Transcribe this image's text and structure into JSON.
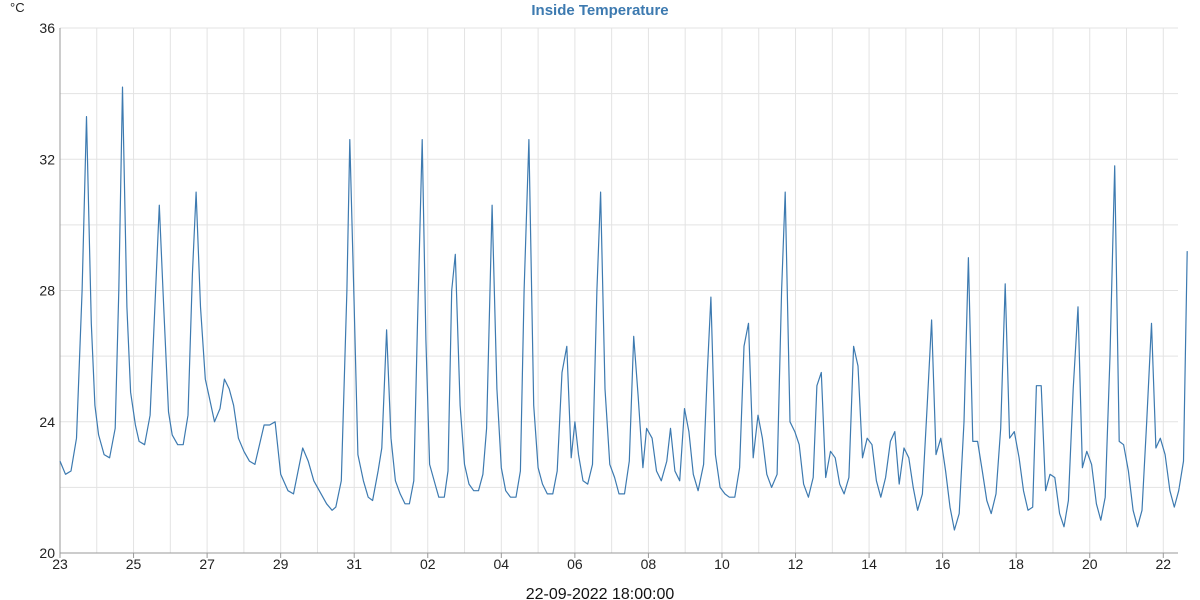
{
  "chart_data": {
    "type": "line",
    "title": "Inside Temperature",
    "ylabel": "°C",
    "xlabel": "22-09-2022 18:00:00",
    "ylim": [
      20,
      36
    ],
    "yticks": [
      20,
      24,
      28,
      32,
      36
    ],
    "xlim": [
      0,
      30.4
    ],
    "xticks": [
      {
        "x": 0,
        "label": "23"
      },
      {
        "x": 2,
        "label": "25"
      },
      {
        "x": 4,
        "label": "27"
      },
      {
        "x": 6,
        "label": "29"
      },
      {
        "x": 8,
        "label": "31"
      },
      {
        "x": 10,
        "label": "02"
      },
      {
        "x": 12,
        "label": "04"
      },
      {
        "x": 14,
        "label": "06"
      },
      {
        "x": 16,
        "label": "08"
      },
      {
        "x": 18,
        "label": "10"
      },
      {
        "x": 20,
        "label": "12"
      },
      {
        "x": 22,
        "label": "14"
      },
      {
        "x": 24,
        "label": "16"
      },
      {
        "x": 26,
        "label": "18"
      },
      {
        "x": 28,
        "label": "20"
      },
      {
        "x": 30,
        "label": "22"
      }
    ],
    "grid": true,
    "colors": {
      "line": "#3d7ab0",
      "title": "#3d7ab0",
      "grid": "#e3e3e3"
    },
    "series": [
      {
        "points": [
          [
            0.0,
            22.8
          ],
          [
            0.15,
            22.4
          ],
          [
            0.3,
            22.5
          ],
          [
            0.45,
            23.5
          ],
          [
            0.6,
            28.0
          ],
          [
            0.72,
            33.3
          ],
          [
            0.85,
            27.0
          ],
          [
            0.95,
            24.5
          ],
          [
            1.05,
            23.6
          ],
          [
            1.2,
            23.0
          ],
          [
            1.35,
            22.9
          ],
          [
            1.5,
            23.8
          ],
          [
            1.6,
            28.0
          ],
          [
            1.7,
            34.2
          ],
          [
            1.82,
            27.5
          ],
          [
            1.92,
            24.9
          ],
          [
            2.05,
            23.9
          ],
          [
            2.15,
            23.4
          ],
          [
            2.3,
            23.3
          ],
          [
            2.45,
            24.2
          ],
          [
            2.6,
            28.0
          ],
          [
            2.7,
            30.6
          ],
          [
            2.82,
            27.5
          ],
          [
            2.95,
            24.3
          ],
          [
            3.05,
            23.6
          ],
          [
            3.2,
            23.3
          ],
          [
            3.35,
            23.3
          ],
          [
            3.48,
            24.2
          ],
          [
            3.6,
            28.5
          ],
          [
            3.7,
            31.0
          ],
          [
            3.82,
            27.5
          ],
          [
            3.95,
            25.3
          ],
          [
            4.05,
            24.8
          ],
          [
            4.2,
            24.0
          ],
          [
            4.35,
            24.4
          ],
          [
            4.47,
            25.3
          ],
          [
            4.6,
            25.0
          ],
          [
            4.72,
            24.5
          ],
          [
            4.85,
            23.5
          ],
          [
            5.0,
            23.1
          ],
          [
            5.15,
            22.8
          ],
          [
            5.3,
            22.7
          ],
          [
            5.55,
            23.9
          ],
          [
            5.7,
            23.9
          ],
          [
            5.85,
            24.0
          ],
          [
            6.0,
            22.4
          ],
          [
            6.2,
            21.9
          ],
          [
            6.35,
            21.8
          ],
          [
            6.6,
            23.2
          ],
          [
            6.75,
            22.8
          ],
          [
            6.9,
            22.2
          ],
          [
            7.1,
            21.8
          ],
          [
            7.25,
            21.5
          ],
          [
            7.4,
            21.3
          ],
          [
            7.5,
            21.4
          ],
          [
            7.65,
            22.2
          ],
          [
            7.8,
            28.0
          ],
          [
            7.88,
            32.6
          ],
          [
            8.0,
            27.5
          ],
          [
            8.1,
            23.0
          ],
          [
            8.25,
            22.2
          ],
          [
            8.38,
            21.7
          ],
          [
            8.5,
            21.6
          ],
          [
            8.65,
            22.5
          ],
          [
            8.75,
            23.2
          ],
          [
            8.88,
            26.8
          ],
          [
            9.0,
            23.5
          ],
          [
            9.12,
            22.2
          ],
          [
            9.25,
            21.8
          ],
          [
            9.38,
            21.5
          ],
          [
            9.5,
            21.5
          ],
          [
            9.62,
            22.2
          ],
          [
            9.72,
            27.0
          ],
          [
            9.85,
            32.6
          ],
          [
            9.95,
            26.5
          ],
          [
            10.05,
            22.7
          ],
          [
            10.2,
            22.1
          ],
          [
            10.3,
            21.7
          ],
          [
            10.45,
            21.7
          ],
          [
            10.55,
            22.5
          ],
          [
            10.65,
            28.0
          ],
          [
            10.75,
            29.1
          ],
          [
            10.88,
            24.5
          ],
          [
            11.0,
            22.7
          ],
          [
            11.12,
            22.1
          ],
          [
            11.25,
            21.9
          ],
          [
            11.38,
            21.9
          ],
          [
            11.5,
            22.4
          ],
          [
            11.6,
            23.8
          ],
          [
            11.75,
            30.6
          ],
          [
            11.88,
            25.0
          ],
          [
            12.0,
            22.6
          ],
          [
            12.12,
            21.9
          ],
          [
            12.25,
            21.7
          ],
          [
            12.4,
            21.7
          ],
          [
            12.52,
            22.5
          ],
          [
            12.62,
            28.0
          ],
          [
            12.75,
            32.6
          ],
          [
            12.88,
            24.5
          ],
          [
            13.0,
            22.6
          ],
          [
            13.12,
            22.1
          ],
          [
            13.25,
            21.8
          ],
          [
            13.4,
            21.8
          ],
          [
            13.52,
            22.5
          ],
          [
            13.65,
            25.5
          ],
          [
            13.78,
            26.3
          ],
          [
            13.9,
            22.9
          ],
          [
            14.0,
            24.0
          ],
          [
            14.1,
            23.0
          ],
          [
            14.22,
            22.2
          ],
          [
            14.35,
            22.1
          ],
          [
            14.48,
            22.7
          ],
          [
            14.6,
            28.0
          ],
          [
            14.7,
            31.0
          ],
          [
            14.82,
            25.0
          ],
          [
            14.95,
            22.7
          ],
          [
            15.08,
            22.3
          ],
          [
            15.2,
            21.8
          ],
          [
            15.35,
            21.8
          ],
          [
            15.48,
            22.8
          ],
          [
            15.6,
            26.6
          ],
          [
            15.72,
            24.8
          ],
          [
            15.85,
            22.6
          ],
          [
            15.95,
            23.8
          ],
          [
            16.1,
            23.5
          ],
          [
            16.22,
            22.5
          ],
          [
            16.35,
            22.2
          ],
          [
            16.5,
            22.8
          ],
          [
            16.6,
            23.8
          ],
          [
            16.72,
            22.5
          ],
          [
            16.85,
            22.2
          ],
          [
            16.98,
            24.4
          ],
          [
            17.1,
            23.7
          ],
          [
            17.22,
            22.4
          ],
          [
            17.35,
            21.9
          ],
          [
            17.5,
            22.7
          ],
          [
            17.6,
            25.5
          ],
          [
            17.7,
            27.8
          ],
          [
            17.82,
            23.0
          ],
          [
            17.95,
            22.0
          ],
          [
            18.08,
            21.8
          ],
          [
            18.2,
            21.7
          ],
          [
            18.35,
            21.7
          ],
          [
            18.48,
            22.6
          ],
          [
            18.6,
            26.3
          ],
          [
            18.72,
            27.0
          ],
          [
            18.85,
            22.9
          ],
          [
            18.98,
            24.2
          ],
          [
            19.1,
            23.5
          ],
          [
            19.22,
            22.4
          ],
          [
            19.35,
            22.0
          ],
          [
            19.5,
            22.4
          ],
          [
            19.62,
            28.0
          ],
          [
            19.72,
            31.0
          ],
          [
            19.85,
            24.0
          ],
          [
            19.98,
            23.7
          ],
          [
            20.1,
            23.3
          ],
          [
            20.22,
            22.1
          ],
          [
            20.35,
            21.7
          ],
          [
            20.48,
            22.3
          ],
          [
            20.58,
            25.1
          ],
          [
            20.7,
            25.5
          ],
          [
            20.82,
            22.3
          ],
          [
            20.95,
            23.1
          ],
          [
            21.08,
            22.9
          ],
          [
            21.2,
            22.1
          ],
          [
            21.32,
            21.8
          ],
          [
            21.45,
            22.3
          ],
          [
            21.58,
            26.3
          ],
          [
            21.7,
            25.7
          ],
          [
            21.82,
            22.9
          ],
          [
            21.95,
            23.5
          ],
          [
            22.08,
            23.3
          ],
          [
            22.2,
            22.2
          ],
          [
            22.32,
            21.7
          ],
          [
            22.45,
            22.3
          ],
          [
            22.58,
            23.4
          ],
          [
            22.7,
            23.7
          ],
          [
            22.82,
            22.1
          ],
          [
            22.95,
            23.2
          ],
          [
            23.08,
            22.9
          ],
          [
            23.2,
            22.0
          ],
          [
            23.32,
            21.3
          ],
          [
            23.45,
            21.8
          ],
          [
            23.58,
            24.5
          ],
          [
            23.7,
            27.1
          ],
          [
            23.82,
            23.0
          ],
          [
            23.95,
            23.5
          ],
          [
            24.08,
            22.5
          ],
          [
            24.2,
            21.4
          ],
          [
            24.32,
            20.7
          ],
          [
            24.45,
            21.2
          ],
          [
            24.58,
            24.0
          ],
          [
            24.7,
            29.0
          ],
          [
            24.82,
            23.4
          ],
          [
            24.95,
            23.4
          ],
          [
            25.08,
            22.5
          ],
          [
            25.2,
            21.6
          ],
          [
            25.32,
            21.2
          ],
          [
            25.45,
            21.8
          ],
          [
            25.58,
            23.8
          ],
          [
            25.7,
            28.2
          ],
          [
            25.82,
            23.5
          ],
          [
            25.95,
            23.7
          ],
          [
            26.08,
            22.9
          ],
          [
            26.2,
            21.9
          ],
          [
            26.32,
            21.3
          ],
          [
            26.45,
            21.4
          ],
          [
            26.55,
            25.1
          ],
          [
            26.68,
            25.1
          ],
          [
            26.8,
            21.9
          ],
          [
            26.92,
            22.4
          ],
          [
            27.05,
            22.3
          ],
          [
            27.18,
            21.2
          ],
          [
            27.3,
            20.8
          ],
          [
            27.42,
            21.6
          ],
          [
            27.55,
            25.0
          ],
          [
            27.68,
            27.5
          ],
          [
            27.8,
            22.6
          ],
          [
            27.92,
            23.1
          ],
          [
            28.05,
            22.7
          ],
          [
            28.18,
            21.5
          ],
          [
            28.3,
            21.0
          ],
          [
            28.42,
            21.7
          ],
          [
            28.55,
            26.0
          ],
          [
            28.68,
            31.8
          ],
          [
            28.8,
            23.4
          ],
          [
            28.92,
            23.3
          ],
          [
            29.05,
            22.5
          ],
          [
            29.18,
            21.3
          ],
          [
            29.3,
            20.8
          ],
          [
            29.42,
            21.3
          ],
          [
            29.55,
            24.0
          ],
          [
            29.68,
            27.0
          ],
          [
            29.8,
            23.2
          ],
          [
            29.92,
            23.5
          ],
          [
            30.05,
            23.0
          ],
          [
            30.18,
            21.9
          ],
          [
            30.3,
            21.4
          ],
          [
            30.42,
            21.9
          ],
          [
            30.55,
            22.8
          ],
          [
            30.65,
            29.2
          ]
        ]
      }
    ]
  }
}
